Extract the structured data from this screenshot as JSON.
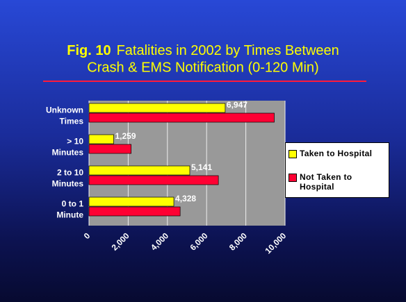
{
  "chart_data": {
    "type": "hbar",
    "title_prefix": "Fig. 10",
    "title": [
      "Fatalities in 2002 by Times Between",
      "Crash & EMS Notification (0-120 Min)"
    ],
    "categories": [
      [
        "Unknown",
        "Times"
      ],
      [
        "> 10",
        "Minutes"
      ],
      [
        "2 to 10",
        "Minutes"
      ],
      [
        "0 to 1",
        "Minute"
      ]
    ],
    "series": [
      {
        "name": "Taken to Hospital",
        "color": "#ffff00",
        "values": [
          6947,
          1259,
          5141,
          4328
        ],
        "value_labels": [
          "6,947",
          "1,259",
          "5,141",
          "4,328"
        ]
      },
      {
        "name": "Not Taken to Hospital",
        "color": "#ff0033",
        "values": [
          9450,
          2150,
          6600,
          4650
        ]
      }
    ],
    "xlim": [
      0,
      10000
    ],
    "xticks": [
      0,
      {
        "value": 2000,
        "label": "2,000"
      },
      {
        "value": 4000,
        "label": "4,000"
      },
      {
        "value": 6000,
        "label": "6,000"
      },
      {
        "value": 8000,
        "label": "8,000"
      },
      {
        "value": 10000,
        "label": "10,000"
      }
    ],
    "grid": true,
    "legend": "right"
  }
}
